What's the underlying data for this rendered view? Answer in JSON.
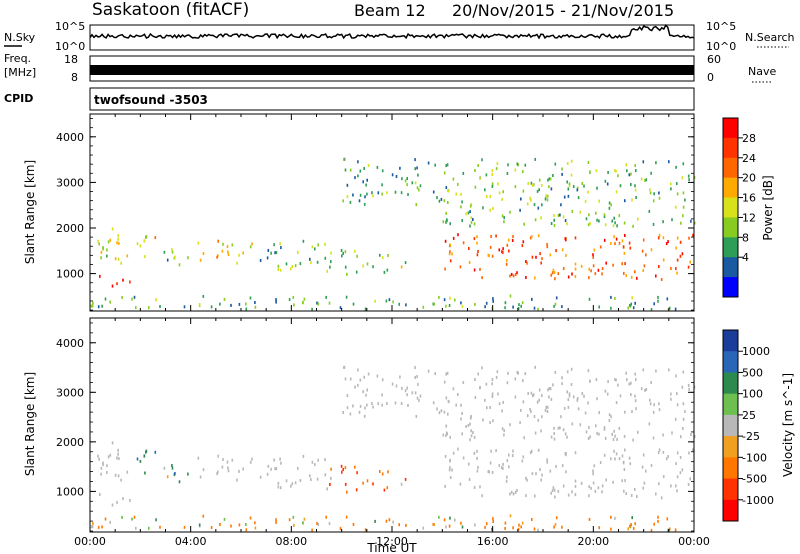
{
  "header": {
    "station": "Saskatoon (fitACF)",
    "beam": "Beam 12",
    "date_range": "20/Nov/2015 - 21/Nov/2015"
  },
  "noise_panel": {
    "left_label": "N.Sky",
    "right_label": "N.Search",
    "tick_top_left": "10^5",
    "tick_bottom_left": "10^0",
    "tick_top_right": "10^5",
    "tick_bottom_right": "10^0"
  },
  "freq_panel": {
    "left_label_line1": "Freq.",
    "left_label_line2": "[MHz]",
    "tick_top_left": "18",
    "tick_bottom_left": "8",
    "right_label": "Nave",
    "tick_top_right": "60",
    "tick_bottom_right": "0"
  },
  "cpid": {
    "label": "CPID",
    "value": "twofsound -3503"
  },
  "x_axis": {
    "label": "Time UT",
    "ticks": [
      "00:00",
      "04:00",
      "08:00",
      "12:00",
      "16:00",
      "20:00",
      "00:00"
    ]
  },
  "power_colorbar": {
    "title": "Power [dB]",
    "ticks": [
      "28",
      "24",
      "20",
      "16",
      "12",
      "8",
      "4"
    ],
    "colors": [
      "#ff0000",
      "#ff3300",
      "#ff6600",
      "#ffaa00",
      "#d8e21a",
      "#88cc22",
      "#2e9e56",
      "#1a5aa0",
      "#0000ff"
    ]
  },
  "velocity_colorbar": {
    "title": "Velocity [m s^-1]",
    "ticks": [
      "1000",
      "500",
      "100",
      "25",
      "-25",
      "-100",
      "-500",
      "-1000"
    ],
    "colors": [
      "#1a3d99",
      "#2a66b8",
      "#2d8a4e",
      "#6dc050",
      "#b8b8b8",
      "#f0a020",
      "#ff7700",
      "#ff3300",
      "#ff0000"
    ]
  },
  "chart_data": [
    {
      "type": "heatmap",
      "title": "Power",
      "xlabel": "Time UT",
      "ylabel": "Slant Range [km]",
      "xlim": [
        "00:00",
        "24:00"
      ],
      "ylim": [
        180,
        4500
      ],
      "yticks": [
        1000,
        2000,
        3000,
        4000
      ],
      "regions": [
        {
          "t": [
            0.0,
            1.5
          ],
          "r": [
            1200,
            2100
          ],
          "mean": 16
        },
        {
          "t": [
            0.3,
            1.6
          ],
          "r": [
            700,
            950
          ],
          "mean": 28
        },
        {
          "t": [
            1.8,
            2.7
          ],
          "r": [
            1300,
            1900
          ],
          "mean": 18
        },
        {
          "t": [
            2.8,
            4.0
          ],
          "r": [
            1150,
            1600
          ],
          "mean": 12
        },
        {
          "t": [
            4.1,
            6.5
          ],
          "r": [
            1200,
            1700
          ],
          "mean": 18
        },
        {
          "t": [
            6.6,
            7.4
          ],
          "r": [
            1200,
            1600
          ],
          "mean": 10
        },
        {
          "t": [
            7.2,
            9.6
          ],
          "r": [
            1000,
            1700
          ],
          "mean": 12
        },
        {
          "t": [
            9.5,
            11.0
          ],
          "r": [
            900,
            1500
          ],
          "mean": 12
        },
        {
          "t": [
            10.0,
            14.0
          ],
          "r": [
            2500,
            3500
          ],
          "mean": 10
        },
        {
          "t": [
            11.2,
            12.6
          ],
          "r": [
            1000,
            1400
          ],
          "mean": 14
        },
        {
          "t": [
            14.0,
            24.0
          ],
          "r": [
            850,
            1850
          ],
          "mean": 26
        },
        {
          "t": [
            14.0,
            24.0
          ],
          "r": [
            2000,
            3500
          ],
          "mean": 12
        },
        {
          "t": [
            0.0,
            24.0
          ],
          "r": [
            200,
            500
          ],
          "mean": 10
        }
      ]
    },
    {
      "type": "heatmap",
      "title": "Velocity",
      "xlabel": "Time UT",
      "ylabel": "Slant Range [km]",
      "xlim": [
        "00:00",
        "24:00"
      ],
      "ylim": [
        180,
        4500
      ],
      "yticks": [
        1000,
        2000,
        3000,
        4000
      ],
      "regions": [
        {
          "t": [
            0.0,
            1.5
          ],
          "r": [
            1200,
            2100
          ],
          "mean": 0
        },
        {
          "t": [
            0.3,
            1.6
          ],
          "r": [
            700,
            950
          ],
          "mean": 0
        },
        {
          "t": [
            1.8,
            2.7
          ],
          "r": [
            1300,
            1900
          ],
          "mean": 300
        },
        {
          "t": [
            2.8,
            4.0
          ],
          "r": [
            1150,
            1600
          ],
          "mean": 150
        },
        {
          "t": [
            4.1,
            6.5
          ],
          "r": [
            1200,
            1700
          ],
          "mean": 0
        },
        {
          "t": [
            6.6,
            7.4
          ],
          "r": [
            1200,
            1600
          ],
          "mean": 0
        },
        {
          "t": [
            7.2,
            9.6
          ],
          "r": [
            1000,
            1700
          ],
          "mean": 0
        },
        {
          "t": [
            9.5,
            11.0
          ],
          "r": [
            900,
            1500
          ],
          "mean": -300
        },
        {
          "t": [
            10.0,
            14.0
          ],
          "r": [
            2500,
            3500
          ],
          "mean": 0
        },
        {
          "t": [
            11.2,
            12.6
          ],
          "r": [
            1000,
            1400
          ],
          "mean": -150
        },
        {
          "t": [
            14.0,
            24.0
          ],
          "r": [
            850,
            1850
          ],
          "mean": 0
        },
        {
          "t": [
            14.0,
            24.0
          ],
          "r": [
            2000,
            3500
          ],
          "mean": 0
        },
        {
          "t": [
            0.0,
            24.0
          ],
          "r": [
            200,
            500
          ],
          "mean": -100
        }
      ]
    }
  ]
}
